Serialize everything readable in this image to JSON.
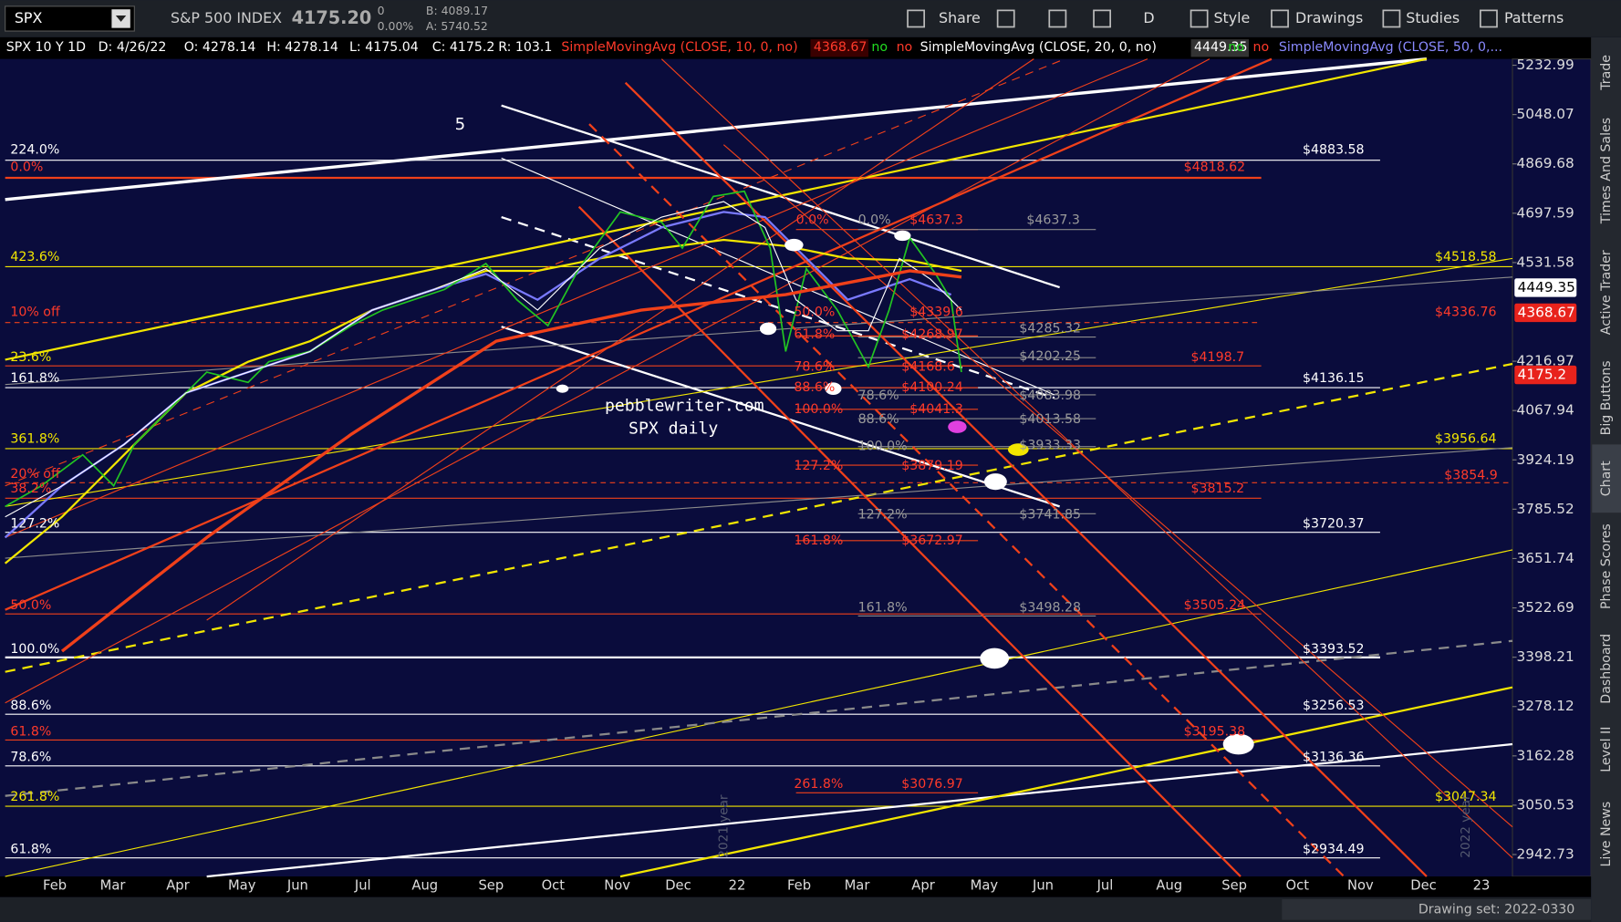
{
  "toolbar": {
    "symbol": "SPX",
    "description": "S&P 500 INDEX",
    "last": "4175.20",
    "change": "0",
    "change_pct": "0.00%",
    "bid": "B: 4089.17",
    "ask": "A: 5740.52",
    "buttons": [
      "Share",
      "D",
      "Style",
      "Drawings",
      "Studies",
      "Patterns"
    ]
  },
  "header": {
    "items": [
      "SPX 10 Y 1D",
      "D: 4/26/22",
      "O: 4278.14",
      "H: 4278.14",
      "L: 4175.04",
      "C: 4175.2",
      "R: 103.1"
    ],
    "studies": [
      {
        "name": "SimpleMovingAvg (CLOSE, 10, 0, no)",
        "value": "4368.67",
        "flags": [
          "no",
          "no"
        ]
      },
      {
        "name": "SimpleMovingAvg (CLOSE, 20, 0, no)",
        "value": "4449.35",
        "flags": [
          "no",
          "no"
        ]
      },
      {
        "name": "SimpleMovingAvg (CLOSE, 50, 0,..."
      }
    ]
  },
  "price_axis": {
    "scale": "log",
    "range": [
      2896,
      5257
    ],
    "ticks": [
      5232.99,
      5048.07,
      4869.68,
      4697.59,
      4531.58,
      4216.97,
      4067.94,
      3924.19,
      3785.52,
      3651.74,
      3522.69,
      3398.21,
      3278.12,
      3162.28,
      3050.53,
      2942.73
    ],
    "markers": [
      {
        "value": 4449.35,
        "color": "#ffffff"
      },
      {
        "value": 4368.67,
        "color": "#e8231c"
      },
      {
        "value": 4175.2,
        "color": "#e8231c"
      }
    ]
  },
  "time_axis": {
    "labels": [
      "Feb",
      "Mar",
      "Apr",
      "May",
      "Jun",
      "Jul",
      "Aug",
      "Sep",
      "Oct",
      "Nov",
      "Dec",
      "22",
      "Feb",
      "Mar",
      "Apr",
      "May",
      "Jun",
      "Jul",
      "Aug",
      "Sep",
      "Oct",
      "Nov",
      "Dec",
      "23"
    ]
  },
  "annotations": [
    "5",
    "224.0%",
    "0.0%",
    "423.6%",
    "10% off",
    "23.6%",
    "161.8%",
    "361.8%",
    "20% off",
    "38.2%",
    "127.2%",
    "50.0%",
    "100.0%",
    "88.6%",
    "61.8%",
    "78.6%",
    "261.8%",
    "61.8%",
    "$4883.58",
    "$4818.62",
    "$4518.58",
    "$4336.76",
    "$4198.7",
    "$4136.15",
    "$3956.64",
    "$3854.9",
    "$3815.2",
    "$3720.37",
    "$3505.24",
    "$3393.52",
    "$3256.53",
    "$3195.38",
    "$3136.36",
    "$3047.34",
    "$2934.49",
    "0.0%",
    "0.0%",
    "$4637.3",
    "$4637.3",
    "50.0%",
    "$4339.6",
    "61.8%",
    "$4268.97",
    "$4285.32",
    "$4202.25",
    "78.6%",
    "$4168.6",
    "88.6%",
    "$4100.24",
    "78.6%",
    "$4083.98",
    "100.0%",
    "$4041.3",
    "88.6%",
    "$4013.58",
    "100.0%",
    "$3933.33",
    "127.2%",
    "$3879.19",
    "127.2%",
    "$3741.85",
    "161.8%",
    "$3672.97",
    "161.8%",
    "$3498.28",
    "261.8%",
    "$3076.97",
    "pebblewriter.com",
    "SPX daily"
  ],
  "watermarks": [
    "2021 year",
    "2022 year"
  ],
  "side_tabs": [
    "Trade",
    "Times And Sales",
    "Active Trader",
    "Big Buttons",
    "Chart",
    "Phase Scores",
    "Dashboard",
    "Level II",
    "Live News"
  ],
  "footer": "Drawing set: 2022-0330"
}
